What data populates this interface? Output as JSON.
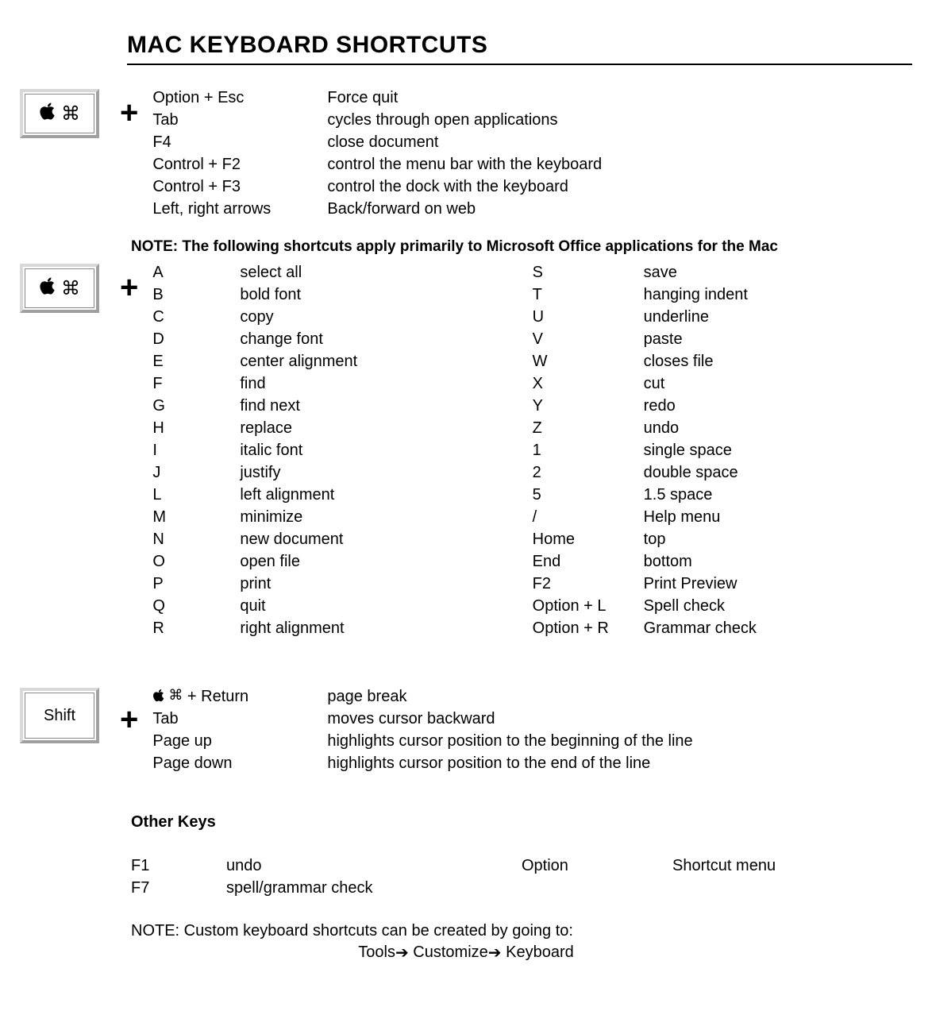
{
  "title": "MAC KEYBOARD SHORTCUTS",
  "section1": {
    "keyIcons": [
      "apple",
      "cmd"
    ],
    "rows": [
      {
        "k": "Option + Esc",
        "d": "Force quit"
      },
      {
        "k": "Tab",
        "d": "cycles through open applications"
      },
      {
        "k": "F4",
        "d": "close document"
      },
      {
        "k": "Control + F2",
        "d": "control the menu bar with the keyboard"
      },
      {
        "k": "Control + F3",
        "d": "control the dock with the keyboard"
      },
      {
        "k": "Left, right arrows",
        "d": "Back/forward on web"
      }
    ]
  },
  "officeNote": "NOTE: The following shortcuts apply primarily to Microsoft Office applications for the Mac",
  "section2": {
    "keyIcons": [
      "apple",
      "cmd"
    ],
    "left": [
      {
        "k": "A",
        "d": "select all"
      },
      {
        "k": "B",
        "d": "bold font"
      },
      {
        "k": "C",
        "d": "copy"
      },
      {
        "k": "D",
        "d": "change font"
      },
      {
        "k": "E",
        "d": "center alignment"
      },
      {
        "k": "F",
        "d": "find"
      },
      {
        "k": "G",
        "d": "find next"
      },
      {
        "k": "H",
        "d": "replace"
      },
      {
        "k": "I",
        "d": "italic font"
      },
      {
        "k": "J",
        "d": "justify"
      },
      {
        "k": "L",
        "d": "left alignment"
      },
      {
        "k": "M",
        "d": "minimize"
      },
      {
        "k": "N",
        "d": "new document"
      },
      {
        "k": "O",
        "d": "open file"
      },
      {
        "k": "P",
        "d": "print"
      },
      {
        "k": "Q",
        "d": "quit"
      },
      {
        "k": "R",
        "d": "right alignment"
      }
    ],
    "right": [
      {
        "k": "S",
        "d": "save"
      },
      {
        "k": "T",
        "d": "hanging indent"
      },
      {
        "k": "U",
        "d": "underline"
      },
      {
        "k": "V",
        "d": "paste"
      },
      {
        "k": "W",
        "d": "closes file"
      },
      {
        "k": "X",
        "d": "cut"
      },
      {
        "k": "Y",
        "d": "redo"
      },
      {
        "k": "Z",
        "d": "undo"
      },
      {
        "k": "1",
        "d": "single space"
      },
      {
        "k": "2",
        "d": "double space"
      },
      {
        "k": "5",
        "d": "1.5 space"
      },
      {
        "k": "/",
        "d": "Help menu"
      },
      {
        "k": "Home",
        "d": "top"
      },
      {
        "k": "End",
        "d": "bottom"
      },
      {
        "k": "F2",
        "d": "Print Preview"
      },
      {
        "k": "Option + L",
        "d": "Spell check"
      },
      {
        "k": "Option + R",
        "d": "Grammar check"
      }
    ]
  },
  "section3": {
    "keyLabel": "Shift",
    "rows": [
      {
        "k": "__APPLECMD__ + Return",
        "d": "page break"
      },
      {
        "k": "Tab",
        "d": "moves cursor backward"
      },
      {
        "k": "Page up",
        "d": "highlights cursor position to the beginning of the line"
      },
      {
        "k": "Page down",
        "d": "highlights cursor position to the end of the line"
      }
    ]
  },
  "otherTitle": "Other Keys",
  "other": {
    "left": [
      {
        "k": "F1",
        "d": "undo"
      },
      {
        "k": "F7",
        "d": "spell/grammar check"
      }
    ],
    "right": [
      {
        "k": "Option",
        "d": "Shortcut menu"
      }
    ]
  },
  "footnote1": "NOTE: Custom keyboard shortcuts can be created by going to:",
  "footnote2_parts": [
    "Tools",
    "Customize",
    "Keyboard"
  ],
  "glyphs": {
    "apple": "",
    "cmd": "⌘",
    "arrow": "➔"
  }
}
